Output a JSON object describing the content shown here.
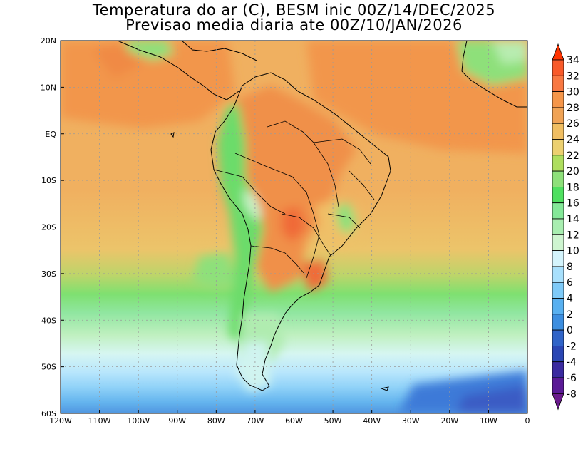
{
  "title": {
    "line1": "Temperatura do ar (C), BESM inic 00Z/14/DEC/2025",
    "line2": "Previsao media diaria ate 00Z/10/JAN/2026"
  },
  "map": {
    "lon_labels": [
      "120W",
      "110W",
      "100W",
      "90W",
      "80W",
      "70W",
      "60W",
      "50W",
      "40W",
      "30W",
      "20W",
      "10W",
      "0"
    ],
    "lat_labels": [
      "20N",
      "10N",
      "EQ",
      "10S",
      "20S",
      "30S",
      "40S",
      "50S",
      "60S"
    ],
    "lon_values": [
      -120,
      -110,
      -100,
      -90,
      -80,
      -70,
      -60,
      -50,
      -40,
      -30,
      -20,
      -10,
      0
    ],
    "lat_values": [
      20,
      10,
      0,
      -10,
      -20,
      -30,
      -40,
      -50,
      -60
    ]
  },
  "colorbar": {
    "labels": [
      "34",
      "32",
      "30",
      "28",
      "26",
      "24",
      "22",
      "20",
      "18",
      "16",
      "14",
      "12",
      "10",
      "8",
      "6",
      "4",
      "2",
      "0",
      "-2",
      "-4",
      "-6",
      "-8"
    ],
    "colors": [
      "#ff3300",
      "#f85a2a",
      "#f87842",
      "#f5964a",
      "#f0a355",
      "#f0be62",
      "#ecd070",
      "#aede5e",
      "#8ee07a",
      "#4fe060",
      "#84e898",
      "#a8eeb0",
      "#cef5d0",
      "#d4f4fc",
      "#a8e0fc",
      "#7ecaf8",
      "#58b0f0",
      "#3c8ee0",
      "#3064c8",
      "#2a46b4",
      "#3a2aa0",
      "#5a1a96",
      "#6a1a8c"
    ]
  }
}
